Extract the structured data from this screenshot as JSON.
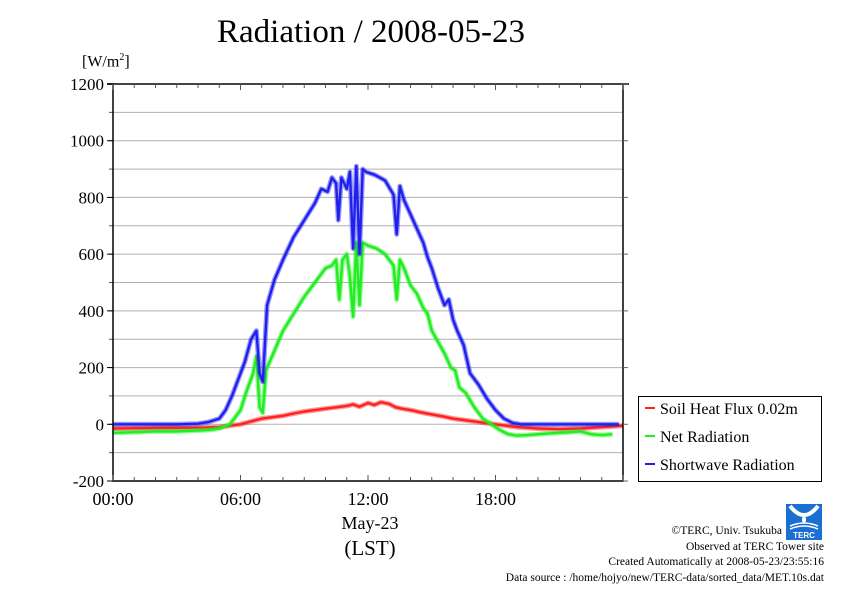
{
  "chart_data": {
    "type": "line",
    "title": "Radiation / 2008-05-23",
    "ylabel": "[W/m2]",
    "ylabel_base": "[W/m",
    "ylabel_sup": "2",
    "ylabel_close": "]",
    "xlabel": "May-23",
    "xlabel2": "(LST)",
    "xlim": [
      0,
      24
    ],
    "ylim": [
      -200,
      1200
    ],
    "grid": true,
    "x_ticks": [
      0,
      6,
      12,
      18
    ],
    "x_tick_labels": [
      "00:00",
      "06:00",
      "12:00",
      "18:00"
    ],
    "y_ticks": [
      -200,
      0,
      200,
      400,
      600,
      800,
      1000,
      1200
    ],
    "y_tick_labels": [
      "-200",
      "0",
      "200",
      "400",
      "600",
      "800",
      "1000",
      "1200"
    ],
    "legend_position": "right",
    "series": [
      {
        "name": "Soil Heat Flux 0.02m",
        "color": "#ff2020",
        "x": [
          0,
          2,
          4,
          5,
          5.5,
          6,
          6.5,
          7,
          7.5,
          8,
          8.5,
          9,
          9.5,
          10,
          10.5,
          11,
          11.3,
          11.6,
          12,
          12.3,
          12.6,
          13,
          13.3,
          13.6,
          14,
          14.5,
          15,
          15.5,
          16,
          16.5,
          17,
          17.5,
          18,
          18.5,
          19,
          20,
          21,
          22,
          23,
          24
        ],
        "y": [
          -15,
          -13,
          -12,
          -10,
          -5,
          0,
          10,
          20,
          25,
          30,
          38,
          45,
          50,
          55,
          60,
          65,
          70,
          62,
          75,
          68,
          78,
          72,
          60,
          55,
          50,
          42,
          35,
          28,
          20,
          15,
          10,
          5,
          0,
          -5,
          -10,
          -15,
          -17,
          -15,
          -10,
          -5
        ]
      },
      {
        "name": "Net Radiation",
        "color": "#20ee20",
        "x": [
          0,
          1,
          2,
          3,
          4,
          4.5,
          5,
          5.5,
          6,
          6.3,
          6.6,
          6.75,
          6.9,
          7.05,
          7.2,
          7.6,
          8,
          8.5,
          9,
          9.5,
          10,
          10.3,
          10.5,
          10.65,
          10.8,
          11,
          11.15,
          11.3,
          11.45,
          11.6,
          11.75,
          12,
          12.4,
          12.8,
          13.2,
          13.35,
          13.5,
          13.7,
          14,
          14.3,
          14.6,
          14.8,
          15,
          15.3,
          15.6,
          15.9,
          16.1,
          16.3,
          16.6,
          17,
          17.4,
          17.8,
          18.2,
          18.6,
          19,
          19.5,
          20,
          20.5,
          21,
          21.5,
          22,
          22.5,
          23,
          23.5
        ],
        "y": [
          -30,
          -28,
          -25,
          -25,
          -22,
          -20,
          -15,
          0,
          50,
          120,
          180,
          240,
          60,
          40,
          190,
          260,
          330,
          390,
          450,
          500,
          550,
          560,
          580,
          440,
          580,
          600,
          520,
          380,
          640,
          420,
          640,
          630,
          620,
          600,
          560,
          440,
          580,
          550,
          490,
          460,
          410,
          390,
          330,
          290,
          250,
          200,
          190,
          130,
          110,
          60,
          20,
          0,
          -20,
          -35,
          -40,
          -38,
          -35,
          -32,
          -30,
          -28,
          -25,
          -35,
          -38,
          -35
        ]
      },
      {
        "name": "Shortwave Radiation",
        "color": "#2020ee",
        "x": [
          0,
          1,
          2,
          3,
          4,
          4.5,
          5,
          5.3,
          5.6,
          5.9,
          6.2,
          6.5,
          6.75,
          6.9,
          7.05,
          7.25,
          7.6,
          8,
          8.5,
          9,
          9.5,
          9.8,
          10.1,
          10.3,
          10.5,
          10.6,
          10.75,
          11,
          11.15,
          11.3,
          11.45,
          11.6,
          11.75,
          11.9,
          12.3,
          12.8,
          13.2,
          13.35,
          13.5,
          13.7,
          14,
          14.3,
          14.6,
          14.8,
          15,
          15.3,
          15.6,
          15.8,
          16,
          16.2,
          16.5,
          16.8,
          17.2,
          17.6,
          18,
          18.4,
          18.8,
          19.2,
          20,
          21,
          22,
          23,
          23.8
        ],
        "y": [
          0,
          0,
          0,
          0,
          2,
          8,
          20,
          50,
          100,
          160,
          220,
          300,
          330,
          180,
          150,
          420,
          510,
          580,
          660,
          720,
          780,
          830,
          820,
          870,
          850,
          720,
          870,
          830,
          890,
          620,
          910,
          600,
          900,
          890,
          880,
          860,
          810,
          670,
          840,
          790,
          740,
          690,
          640,
          590,
          550,
          480,
          420,
          440,
          370,
          330,
          280,
          180,
          140,
          90,
          50,
          20,
          5,
          0,
          0,
          0,
          0,
          0,
          0
        ]
      }
    ]
  },
  "legend": {
    "items": [
      "Soil Heat Flux 0.02m",
      "Net Radiation",
      "Shortwave Radiation"
    ]
  },
  "footer": {
    "copyright": "©TERC, Univ. Tsukuba",
    "observed": "Observed at TERC Tower site",
    "created": "Created Automatically at 2008-05-23/23:55:16",
    "source": "Data source : /home/hojyo/new/TERC-data/sorted_data/MET.10s.dat"
  },
  "logo_text": "TERC"
}
